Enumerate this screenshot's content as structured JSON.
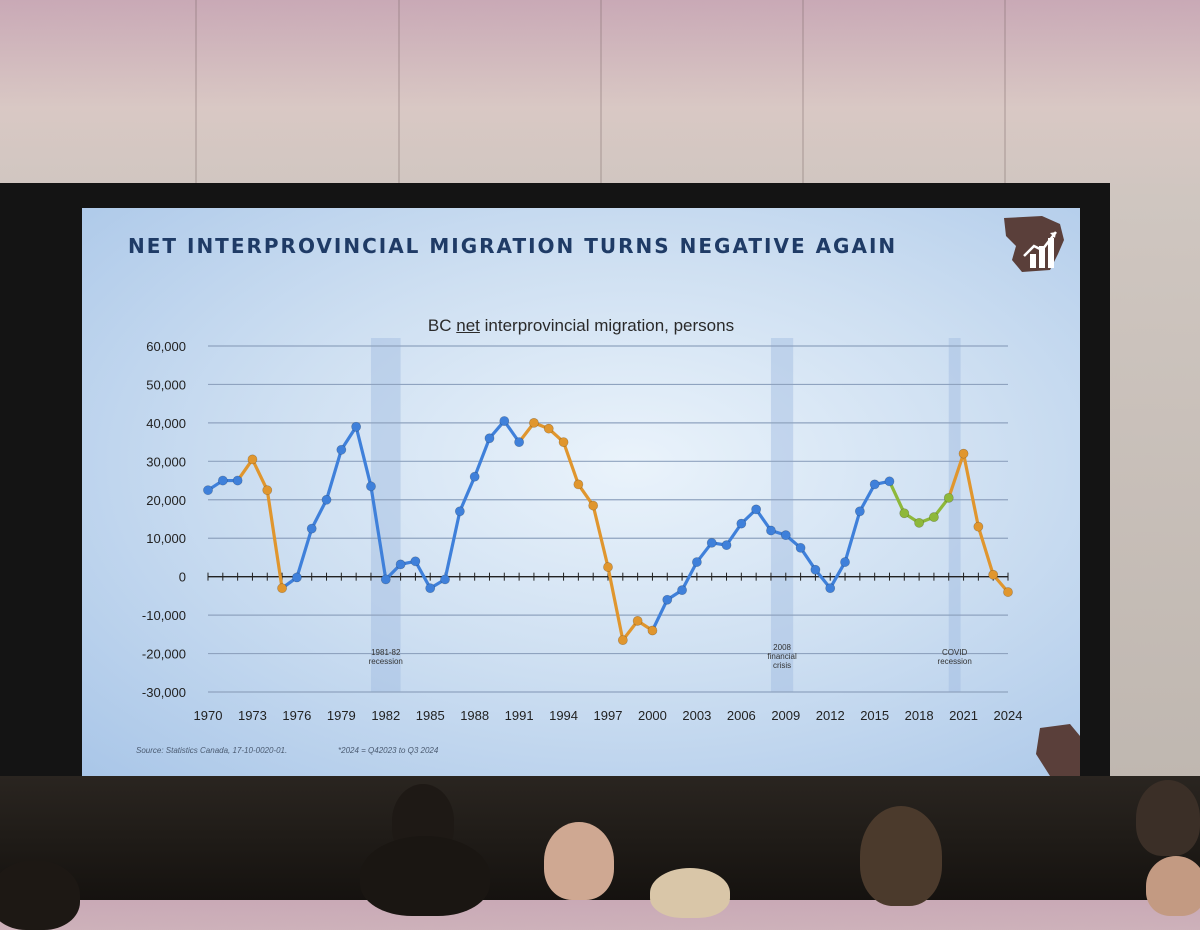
{
  "slide": {
    "title": "NET INTERPROVINCIAL MIGRATION TURNS NEGATIVE AGAIN",
    "source": "Source: Statistics Canada, 17-10-0020-01.",
    "note": "*2024 = Q42023 to Q3 2024"
  },
  "colors": {
    "blue": "#3f80da",
    "orange": "#e0962e",
    "green": "#8eb83a",
    "title": "#1f3b66",
    "recession": "#9fbbe0"
  },
  "chart_data": {
    "type": "line",
    "title_parts": [
      "BC ",
      "net",
      " interprovincial migration, persons"
    ],
    "ylim": [
      -30000,
      60000
    ],
    "yticks": [
      60000,
      50000,
      40000,
      30000,
      20000,
      10000,
      0,
      -10000,
      -20000,
      -30000
    ],
    "ytick_labels": [
      "60,000",
      "50,000",
      "40,000",
      "30,000",
      "20,000",
      "10,000",
      "0",
      "-10,000",
      "-20,000",
      "-30,000"
    ],
    "xlim": [
      1970,
      2024
    ],
    "xtick_labels": [
      "1970",
      "1973",
      "1976",
      "1979",
      "1982",
      "1985",
      "1988",
      "1991",
      "1994",
      "1997",
      "2000",
      "2003",
      "2006",
      "2009",
      "2012",
      "2015",
      "2018",
      "2021",
      "2024"
    ],
    "xticks": [
      1970,
      1973,
      1976,
      1979,
      1982,
      1985,
      1988,
      1991,
      1994,
      1997,
      2000,
      2003,
      2006,
      2009,
      2012,
      2015,
      2018,
      2021,
      2024
    ],
    "grid": true,
    "x": [
      1970,
      1971,
      1972,
      1973,
      1974,
      1975,
      1976,
      1977,
      1978,
      1979,
      1980,
      1981,
      1982,
      1983,
      1984,
      1985,
      1986,
      1987,
      1988,
      1989,
      1990,
      1991,
      1992,
      1993,
      1994,
      1995,
      1996,
      1997,
      1998,
      1999,
      2000,
      2001,
      2002,
      2003,
      2004,
      2005,
      2006,
      2007,
      2008,
      2009,
      2010,
      2011,
      2012,
      2013,
      2014,
      2015,
      2016,
      2017,
      2018,
      2019,
      2020,
      2021,
      2022,
      2023,
      2024
    ],
    "values": [
      22500,
      25000,
      25000,
      30500,
      22500,
      -3000,
      -200,
      12500,
      20000,
      33000,
      39000,
      23500,
      -700,
      3200,
      4000,
      -3000,
      -700,
      17000,
      26000,
      36000,
      40500,
      35000,
      40000,
      38500,
      35000,
      24000,
      18500,
      2500,
      -16500,
      -11500,
      -14000,
      -6000,
      -3500,
      3800,
      8800,
      8200,
      13800,
      17500,
      12000,
      10800,
      7500,
      1800,
      -3000,
      3800,
      17000,
      24000,
      24800,
      16500,
      14000,
      15500,
      20500,
      32000,
      13000,
      500,
      -4000
    ],
    "segment_colors": [
      "blue",
      "blue",
      "orange",
      "orange",
      "orange",
      "blue",
      "blue",
      "blue",
      "blue",
      "blue",
      "blue",
      "blue",
      "blue",
      "blue",
      "blue",
      "blue",
      "blue",
      "blue",
      "blue",
      "blue",
      "blue",
      "orange",
      "orange",
      "orange",
      "orange",
      "orange",
      "orange",
      "orange",
      "orange",
      "orange",
      "blue",
      "blue",
      "blue",
      "blue",
      "blue",
      "blue",
      "blue",
      "blue",
      "blue",
      "blue",
      "blue",
      "blue",
      "blue",
      "blue",
      "blue",
      "blue",
      "green",
      "green",
      "green",
      "green",
      "orange",
      "orange",
      "orange",
      "orange"
    ],
    "point_colors": [
      "blue",
      "blue",
      "blue",
      "orange",
      "orange",
      "orange",
      "blue",
      "blue",
      "blue",
      "blue",
      "blue",
      "blue",
      "blue",
      "blue",
      "blue",
      "blue",
      "blue",
      "blue",
      "blue",
      "blue",
      "blue",
      "blue",
      "orange",
      "orange",
      "orange",
      "orange",
      "orange",
      "orange",
      "orange",
      "orange",
      "orange",
      "blue",
      "blue",
      "blue",
      "blue",
      "blue",
      "blue",
      "blue",
      "blue",
      "blue",
      "blue",
      "blue",
      "blue",
      "blue",
      "blue",
      "blue",
      "blue",
      "green",
      "green",
      "green",
      "green",
      "orange",
      "orange",
      "orange",
      "orange"
    ],
    "recessions": [
      {
        "start": 1981,
        "end": 1983,
        "label": [
          "1981-82",
          "recession"
        ]
      },
      {
        "start": 2008,
        "end": 2009.5,
        "label": [
          "2008",
          "financial",
          "crisis"
        ]
      },
      {
        "start": 2020,
        "end": 2020.8,
        "label": [
          "COVID",
          "recession"
        ]
      }
    ]
  }
}
